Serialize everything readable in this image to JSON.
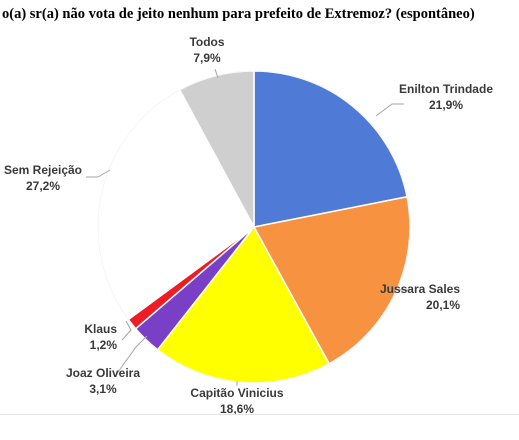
{
  "chart_data": {
    "type": "pie",
    "title": "o(a) sr(a) não vota de jeito nenhum para prefeito de Extremoz? (espontâneo)",
    "slices": [
      {
        "name": "Enilton Trindade",
        "value": 21.9,
        "value_label": "21,9%",
        "color": "#4f7bd6"
      },
      {
        "name": "Jussara Sales",
        "value": 20.1,
        "value_label": "20,1%",
        "color": "#f79240"
      },
      {
        "name": "Capitão Vinicius",
        "value": 18.6,
        "value_label": "18,6%",
        "color": "#ffff00"
      },
      {
        "name": "Joaz Oliveira",
        "value": 3.1,
        "value_label": "3,1%",
        "color": "#7a3fc7"
      },
      {
        "name": "Klaus",
        "value": 1.2,
        "value_label": "1,2%",
        "color": "#ee1c24"
      },
      {
        "name": "Sem Rejeição",
        "value": 27.2,
        "value_label": "27,2%",
        "color": "#ffffff"
      },
      {
        "name": "Todos",
        "value": 7.9,
        "value_label": "7,9%",
        "color": "#cfcfcf"
      }
    ]
  }
}
